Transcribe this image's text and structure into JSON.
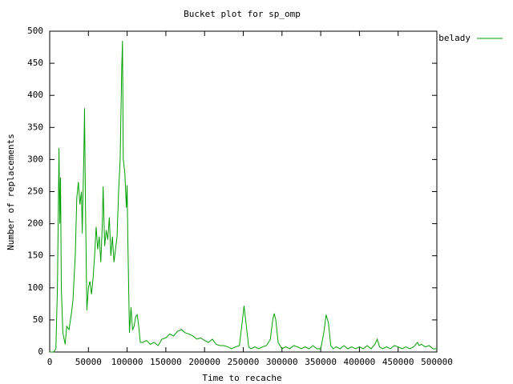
{
  "chart_data": {
    "type": "line",
    "title": "Bucket plot for sp_omp",
    "xlabel": "Time to recache",
    "ylabel": "Number of replacements",
    "x": [
      0,
      5000,
      8000,
      10000,
      12000,
      13000,
      14000,
      15000,
      17000,
      20000,
      22000,
      25000,
      28000,
      30000,
      33000,
      35000,
      37000,
      39000,
      41000,
      42000,
      44000,
      45000,
      46000,
      48000,
      50000,
      52000,
      54000,
      56000,
      58000,
      60000,
      62000,
      64000,
      66000,
      68000,
      69000,
      71000,
      73000,
      75000,
      77000,
      79000,
      81000,
      83000,
      85000,
      87000,
      89000,
      91000,
      93000,
      94000,
      95000,
      97000,
      99000,
      100000,
      101000,
      103000,
      105000,
      107000,
      109000,
      111000,
      113000,
      115000,
      117000,
      120000,
      125000,
      130000,
      135000,
      140000,
      145000,
      150000,
      155000,
      160000,
      165000,
      170000,
      175000,
      180000,
      185000,
      190000,
      195000,
      200000,
      205000,
      210000,
      215000,
      220000,
      225000,
      230000,
      235000,
      240000,
      245000,
      248000,
      251000,
      254000,
      257000,
      260000,
      265000,
      270000,
      275000,
      280000,
      285000,
      288000,
      290000,
      292000,
      295000,
      300000,
      305000,
      310000,
      315000,
      320000,
      325000,
      330000,
      335000,
      340000,
      345000,
      350000,
      354000,
      357000,
      360000,
      363000,
      366000,
      370000,
      375000,
      380000,
      385000,
      390000,
      395000,
      400000,
      405000,
      410000,
      415000,
      420000,
      423000,
      426000,
      430000,
      435000,
      440000,
      445000,
      450000,
      455000,
      460000,
      465000,
      470000,
      475000,
      477000,
      480000,
      485000,
      490000,
      495000,
      500000
    ],
    "series": [
      {
        "name": "belady",
        "color": "#00a000",
        "values": [
          0,
          0,
          5,
          100,
          318,
          200,
          272,
          100,
          30,
          12,
          40,
          35,
          60,
          80,
          150,
          240,
          265,
          230,
          250,
          185,
          300,
          380,
          250,
          65,
          100,
          110,
          90,
          115,
          150,
          195,
          160,
          180,
          140,
          200,
          258,
          165,
          190,
          175,
          210,
          150,
          180,
          140,
          160,
          180,
          250,
          300,
          440,
          485,
          300,
          280,
          225,
          260,
          170,
          30,
          70,
          35,
          40,
          55,
          58,
          40,
          15,
          15,
          18,
          12,
          15,
          10,
          20,
          22,
          28,
          25,
          32,
          35,
          30,
          28,
          25,
          20,
          22,
          18,
          15,
          20,
          12,
          10,
          10,
          8,
          5,
          8,
          10,
          40,
          72,
          40,
          8,
          5,
          8,
          5,
          8,
          10,
          20,
          50,
          60,
          50,
          15,
          5,
          8,
          5,
          10,
          8,
          5,
          8,
          5,
          10,
          5,
          5,
          30,
          58,
          45,
          10,
          5,
          8,
          5,
          10,
          5,
          8,
          5,
          8,
          5,
          10,
          5,
          12,
          20,
          8,
          5,
          8,
          5,
          10,
          8,
          5,
          8,
          5,
          8,
          15,
          10,
          12,
          8,
          10,
          5,
          5
        ]
      }
    ],
    "xlim": [
      0,
      500000
    ],
    "ylim": [
      0,
      500
    ],
    "xticks": [
      0,
      50000,
      100000,
      150000,
      200000,
      250000,
      300000,
      350000,
      400000,
      450000,
      500000
    ],
    "yticks": [
      0,
      50,
      100,
      150,
      200,
      250,
      300,
      350,
      400,
      450,
      500
    ],
    "legend": "top-right"
  }
}
